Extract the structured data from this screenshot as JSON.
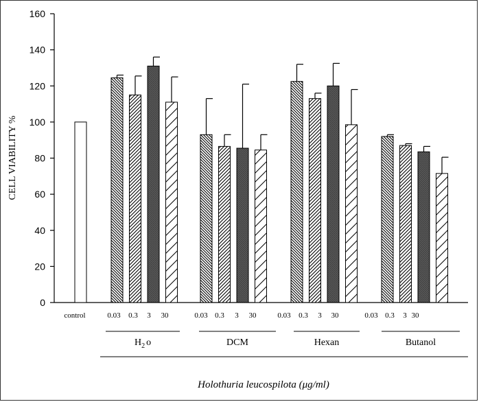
{
  "chart_data": {
    "type": "bar",
    "title": "",
    "ylabel": "CELL VIABILITY %",
    "xlabel": "Holothuria leucospilota (μg/ml)",
    "ylim": [
      0,
      160
    ],
    "yticks": [
      0,
      20,
      40,
      60,
      80,
      100,
      120,
      140,
      160
    ],
    "grid": false,
    "legend": "none",
    "control": {
      "label": "control",
      "value": 100
    },
    "dose_labels": [
      "0.03",
      "0.3",
      "3",
      "30"
    ],
    "groups": [
      {
        "label_main": "H",
        "label_sub": "2",
        "label_tail": "o",
        "values": [
          124.5,
          115,
          131,
          111
        ],
        "errors": [
          1.5,
          10.5,
          5,
          14
        ]
      },
      {
        "label_main": "DCM",
        "values": [
          93,
          86.5,
          85.5,
          84.5
        ],
        "errors": [
          20,
          6.5,
          35.5,
          8.5
        ]
      },
      {
        "label_main": "Hexan",
        "values": [
          122.5,
          113,
          120,
          98.5
        ],
        "errors": [
          9.5,
          3,
          12.5,
          19.5
        ]
      },
      {
        "label_main": "Butanol",
        "values": [
          92,
          87,
          83.5,
          71.5
        ],
        "errors": [
          1,
          1,
          3,
          9
        ]
      }
    ]
  }
}
